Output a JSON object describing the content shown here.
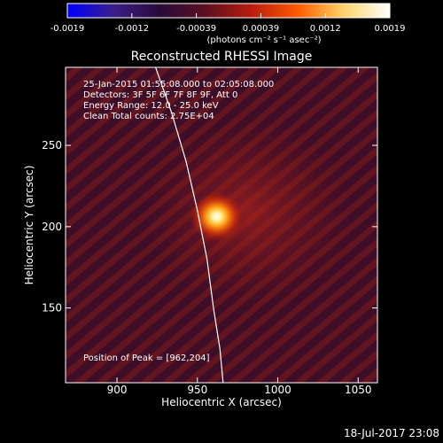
{
  "chart_data": {
    "type": "heatmap",
    "title": "Reconstructed RHESSI Image",
    "xlabel": "Heliocentric X (arcsec)",
    "ylabel": "Heliocentric Y (arcsec)",
    "xlim": [
      868,
      1062
    ],
    "ylim": [
      104,
      298
    ],
    "xticks": [
      900,
      950,
      1000,
      1050
    ],
    "yticks": [
      150,
      200,
      250
    ],
    "colorbar": {
      "min": -0.0019,
      "max": 0.0019,
      "ticks": [
        "-0.0019",
        "-0.0012",
        "-0.00039",
        "0.00039",
        "0.0012",
        "0.0019"
      ],
      "unit_label": "(photons cm⁻² s⁻¹ asec⁻²)",
      "colors": [
        "#0000ff",
        "#3b1e8a",
        "#2a0a3a",
        "#5c0f22",
        "#b81c0e",
        "#ff5a00",
        "#ffd36a",
        "#ffffff"
      ]
    },
    "annotations": [
      "25-Jan-2015 01:55:08.000 to 02:05:08.000",
      "Detectors: 3F 5F 6F 7F 8F 9F, Att 0",
      "Energy Range: 12.0 - 25.0 keV",
      "Clean    Total counts: 2.75E+04"
    ],
    "peak": {
      "x": 962,
      "y": 204,
      "label": "Position of Peak = [962,204]"
    },
    "limb_arc": [
      [
        924,
        298
      ],
      [
        934,
        270
      ],
      [
        943,
        240
      ],
      [
        950,
        210
      ],
      [
        956,
        180
      ],
      [
        960,
        150
      ],
      [
        964,
        125
      ],
      [
        966,
        104
      ]
    ],
    "timestamp": "18-Jul-2017 23:08"
  }
}
